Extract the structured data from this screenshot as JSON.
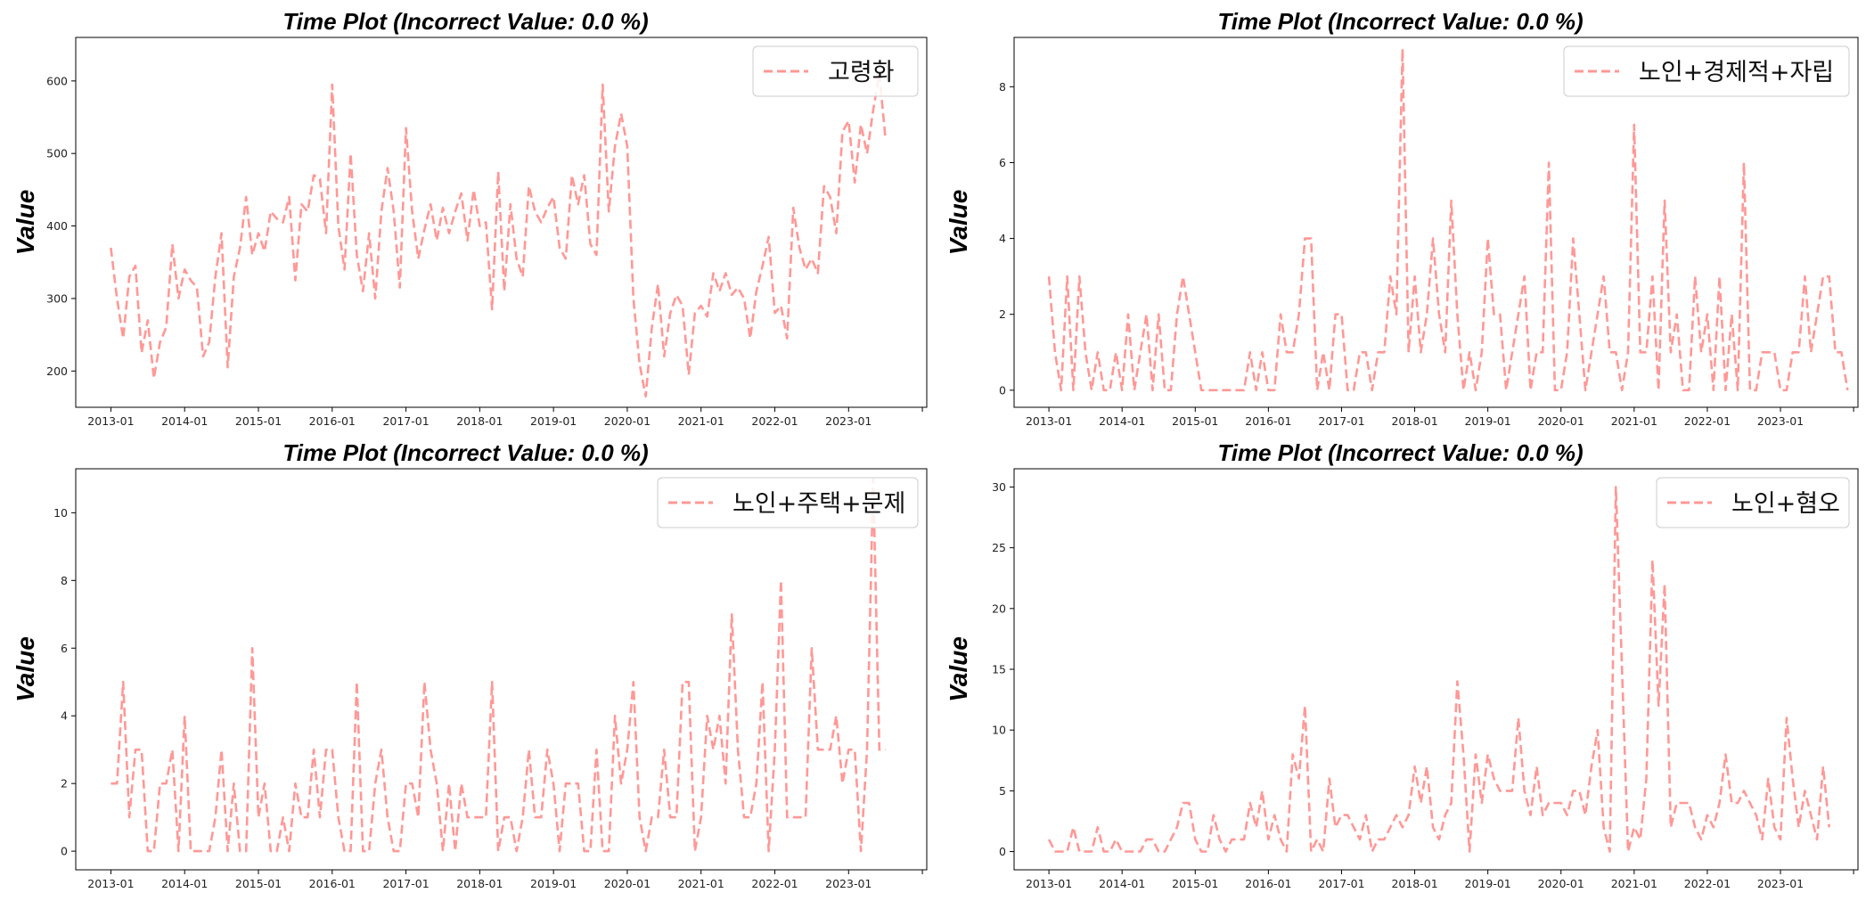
{
  "page": {
    "colors": {
      "line": "#ff9896",
      "axis": "#000000",
      "legend_border": "#cccccc"
    }
  },
  "chart_data": [
    {
      "type": "line",
      "title": "Time Plot (Incorrect Value: 0.0 %)",
      "ylabel": "Value",
      "xlabel": "",
      "x_start": "2013-01",
      "x_end": "2023-08",
      "x_ticks": [
        "2013-01",
        "2014-01",
        "2015-01",
        "2016-01",
        "2017-01",
        "2018-01",
        "2019-01",
        "2020-01",
        "2021-01",
        "2022-01",
        "2023-01"
      ],
      "ylim": [
        150,
        660
      ],
      "y_ticks": [
        200,
        300,
        400,
        500,
        600
      ],
      "legend_position": "upper-right",
      "line_style": "dashed",
      "series": [
        {
          "name": "고령화",
          "color": "#ff9896",
          "values": [
            370,
            300,
            245,
            330,
            345,
            225,
            270,
            190,
            240,
            260,
            375,
            300,
            340,
            325,
            315,
            220,
            240,
            330,
            390,
            205,
            330,
            370,
            440,
            360,
            390,
            365,
            420,
            410,
            405,
            440,
            325,
            430,
            420,
            470,
            465,
            390,
            595,
            400,
            340,
            500,
            360,
            310,
            390,
            300,
            420,
            480,
            420,
            315,
            535,
            420,
            355,
            395,
            430,
            380,
            425,
            390,
            420,
            445,
            380,
            450,
            400,
            405,
            285,
            475,
            310,
            430,
            355,
            330,
            455,
            420,
            405,
            425,
            440,
            370,
            355,
            470,
            430,
            470,
            375,
            360,
            595,
            420,
            510,
            555,
            510,
            300,
            210,
            165,
            260,
            320,
            220,
            280,
            305,
            290,
            195,
            280,
            290,
            275,
            335,
            310,
            335,
            305,
            315,
            300,
            245,
            310,
            345,
            385,
            280,
            290,
            245,
            425,
            370,
            340,
            355,
            335,
            455,
            440,
            390,
            530,
            545,
            460,
            540,
            500,
            560,
            610,
            520
          ]
        }
      ]
    },
    {
      "type": "line",
      "title": "Time Plot (Incorrect Value: 0.0 %)",
      "ylabel": "Value",
      "xlabel": "",
      "x_start": "2013-01",
      "x_end": "2023-08",
      "x_ticks": [
        "2013-01",
        "2014-01",
        "2015-01",
        "2016-01",
        "2017-01",
        "2018-01",
        "2019-01",
        "2020-01",
        "2021-01",
        "2022-01",
        "2023-01"
      ],
      "ylim": [
        -0.45,
        9.3
      ],
      "y_ticks": [
        0,
        2,
        4,
        6,
        8
      ],
      "legend_position": "upper-right",
      "line_style": "dashed",
      "series": [
        {
          "name": "노인+경제적+자립",
          "color": "#ff9896",
          "values": [
            3,
            1,
            0,
            3,
            0,
            3,
            1,
            0,
            1,
            0,
            0,
            1,
            0,
            2,
            0,
            1,
            2,
            0,
            2,
            0,
            0,
            2,
            3,
            2,
            1,
            0,
            0,
            0,
            0,
            0,
            0,
            0,
            0,
            1,
            0,
            1,
            0,
            0,
            2,
            1,
            1,
            2,
            4,
            4,
            0,
            1,
            0,
            2,
            2,
            0,
            0,
            1,
            1,
            0,
            1,
            1,
            3,
            2,
            9,
            1,
            3,
            1,
            2,
            4,
            2,
            1,
            5,
            2,
            0,
            1,
            0,
            1,
            4,
            2,
            2,
            0,
            1,
            2,
            3,
            0,
            1,
            1,
            6,
            0,
            0,
            1,
            4,
            2,
            0,
            1,
            2,
            3,
            1,
            1,
            0,
            1,
            7,
            1,
            1,
            3,
            0,
            5,
            1,
            2,
            0,
            0,
            3,
            1,
            2,
            0,
            3,
            0,
            2,
            0,
            6,
            0,
            0,
            1,
            1,
            1,
            0,
            0,
            1,
            1,
            3,
            1,
            2,
            3,
            3,
            1,
            1,
            0
          ]
        }
      ]
    },
    {
      "type": "line",
      "title": "Time Plot (Incorrect Value: 0.0 %)",
      "ylabel": "Value",
      "xlabel": "",
      "x_start": "2013-01",
      "x_end": "2023-08",
      "x_ticks": [
        "2013-01",
        "2014-01",
        "2015-01",
        "2016-01",
        "2017-01",
        "2018-01",
        "2019-01",
        "2020-01",
        "2021-01",
        "2022-01",
        "2023-01"
      ],
      "ylim": [
        -0.55,
        11.3
      ],
      "y_ticks": [
        0,
        2,
        4,
        6,
        8,
        10
      ],
      "legend_position": "upper-right",
      "line_style": "dashed",
      "series": [
        {
          "name": "노인+주택+문제",
          "color": "#ff9896",
          "values": [
            2,
            2,
            5,
            1,
            3,
            3,
            0,
            0,
            2,
            2,
            3,
            0,
            4,
            0,
            0,
            0,
            0,
            1,
            3,
            0,
            2,
            0,
            0,
            6,
            1,
            2,
            0,
            0,
            1,
            0,
            2,
            1,
            1,
            3,
            1,
            3,
            3,
            1,
            0,
            0,
            5,
            0,
            0,
            2,
            3,
            1,
            0,
            0,
            2,
            2,
            1,
            5,
            3,
            2,
            0,
            2,
            0,
            2,
            1,
            1,
            1,
            1,
            5,
            0,
            1,
            1,
            0,
            1,
            3,
            1,
            1,
            3,
            2,
            0,
            2,
            2,
            2,
            0,
            0,
            3,
            0,
            0,
            4,
            2,
            3,
            5,
            1,
            0,
            1,
            1,
            3,
            1,
            1,
            5,
            5,
            0,
            1,
            4,
            3,
            4,
            2,
            7,
            3,
            1,
            1,
            2,
            5,
            0,
            3,
            8,
            1,
            1,
            1,
            1,
            6,
            3,
            3,
            3,
            4,
            2,
            3,
            3,
            0,
            3,
            11,
            3,
            3
          ]
        }
      ]
    },
    {
      "type": "line",
      "title": "Time Plot (Incorrect Value: 0.0 %)",
      "ylabel": "Value",
      "xlabel": "",
      "x_start": "2013-01",
      "x_end": "2023-08",
      "x_ticks": [
        "2013-01",
        "2014-01",
        "2015-01",
        "2016-01",
        "2017-01",
        "2018-01",
        "2019-01",
        "2020-01",
        "2021-01",
        "2022-01",
        "2023-01"
      ],
      "ylim": [
        -1.5,
        31.5
      ],
      "y_ticks": [
        0,
        5,
        10,
        15,
        20,
        25,
        30
      ],
      "legend_position": "upper-right",
      "line_style": "dashed",
      "series": [
        {
          "name": "노인+혐오",
          "color": "#ff9896",
          "values": [
            1,
            0,
            0,
            0,
            2,
            0,
            0,
            0,
            2,
            0,
            0,
            1,
            0,
            0,
            0,
            0,
            1,
            1,
            0,
            0,
            1,
            2,
            4,
            4,
            1,
            0,
            0,
            3,
            1,
            0,
            1,
            1,
            1,
            4,
            2,
            5,
            1,
            3,
            1,
            0,
            8,
            6,
            12,
            0,
            1,
            0,
            6,
            2,
            3,
            3,
            2,
            1,
            3,
            0,
            1,
            1,
            2,
            3,
            2,
            3,
            7,
            4,
            7,
            2,
            1,
            3,
            4,
            14,
            8,
            0,
            8,
            4,
            8,
            6,
            5,
            5,
            5,
            11,
            5,
            3,
            7,
            3,
            4,
            4,
            4,
            3,
            5,
            5,
            3,
            7,
            10,
            2,
            0,
            30,
            15,
            0,
            2,
            1,
            6,
            24,
            12,
            22,
            2,
            4,
            4,
            4,
            2,
            1,
            3,
            2,
            4,
            8,
            4,
            4,
            5,
            4,
            3,
            1,
            6,
            2,
            1,
            11,
            6,
            2,
            5,
            3,
            1,
            7,
            2
          ]
        }
      ]
    }
  ]
}
